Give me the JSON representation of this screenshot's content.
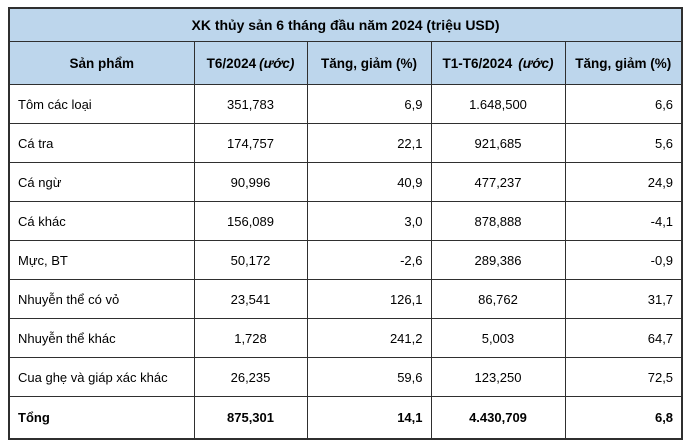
{
  "chart_data": {
    "type": "table",
    "title": "XK thủy sản 6 tháng đầu năm 2024 (triệu USD)",
    "unit": "triệu USD",
    "columns": [
      {
        "label": "Sản phẩm",
        "note": ""
      },
      {
        "label": "T6/2024",
        "note": "(ước)"
      },
      {
        "label": "Tăng, giảm (%)",
        "note": ""
      },
      {
        "label": "T1-T6/2024",
        "note": "(ước)"
      },
      {
        "label": "Tăng, giảm (%)",
        "note": ""
      }
    ],
    "rows": [
      [
        "Tôm các loại",
        "351,783",
        "6,9",
        "1.648,500",
        "6,6"
      ],
      [
        "Cá tra",
        "174,757",
        "22,1",
        "921,685",
        "5,6"
      ],
      [
        "Cá ngừ",
        "90,996",
        "40,9",
        "477,237",
        "24,9"
      ],
      [
        "Cá khác",
        "156,089",
        "3,0",
        "878,888",
        "-4,1"
      ],
      [
        "Mực, BT",
        "50,172",
        "-2,6",
        "289,386",
        "-0,9"
      ],
      [
        "Nhuyễn thể có vỏ",
        "23,541",
        "126,1",
        "86,762",
        "31,7"
      ],
      [
        "Nhuyễn thể khác",
        "1,728",
        "241,2",
        "5,003",
        "64,7"
      ],
      [
        "Cua ghẹ và giáp xác khác",
        "26,235",
        "59,6",
        "123,250",
        "72,5"
      ]
    ],
    "total_row": [
      "Tổng",
      "875,301",
      "14,1",
      "4.430,709",
      "6,8"
    ],
    "colors": {
      "header_bg": "#BDD6EC",
      "border": "#2F2F2F",
      "text": "#000000",
      "background": "#FFFFFF"
    }
  }
}
